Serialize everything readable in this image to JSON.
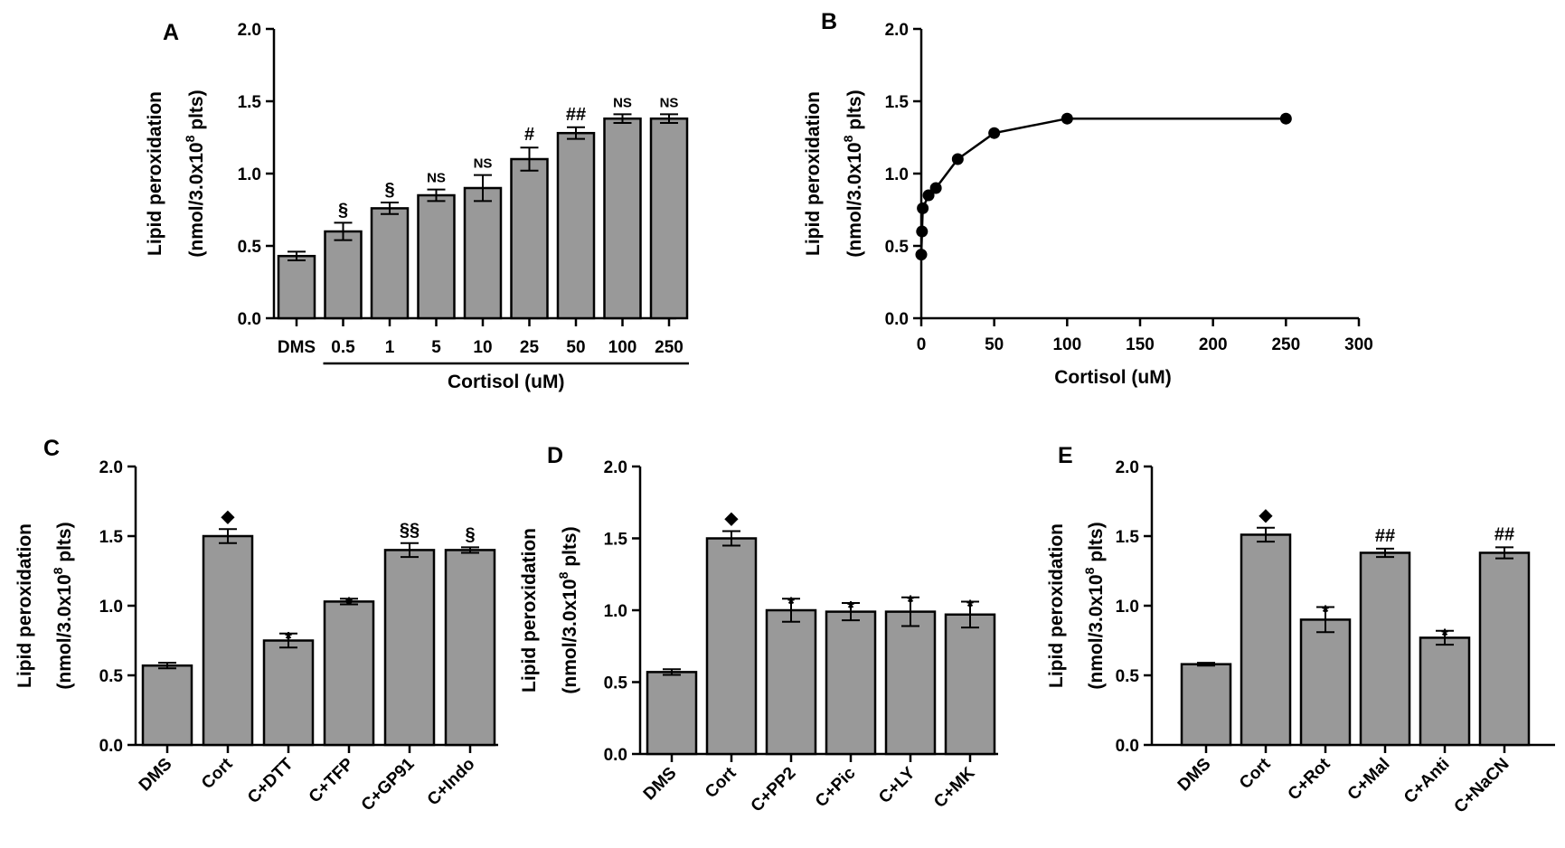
{
  "chart_data": [
    {
      "panel": "A",
      "type": "bar",
      "ylabel_line1": "Lipid peroxidation",
      "ylabel_line2_prefix": "(nmol/3.0x10",
      "ylabel_line2_sup": "8",
      "ylabel_line2_suffix": " plts)",
      "ylim": [
        0,
        2.0
      ],
      "yticks": [
        "0.0",
        "0.5",
        "1.0",
        "1.5",
        "2.0"
      ],
      "ytick_values": [
        0,
        0.5,
        1.0,
        1.5,
        2.0
      ],
      "categories": [
        "DMS",
        "0.5",
        "1",
        "5",
        "10",
        "25",
        "50",
        "100",
        "250"
      ],
      "values": [
        0.43,
        0.6,
        0.76,
        0.85,
        0.9,
        1.1,
        1.28,
        1.38,
        1.38
      ],
      "errors": [
        0.03,
        0.06,
        0.04,
        0.04,
        0.09,
        0.08,
        0.04,
        0.03,
        0.03
      ],
      "annotations": [
        "",
        "§",
        "§",
        "NS",
        "NS",
        "#",
        "##",
        "NS",
        "NS"
      ],
      "group_label": "Cortisol (uM)"
    },
    {
      "panel": "B",
      "type": "line",
      "ylabel_line1": "Lipid peroxidation",
      "ylabel_line2_prefix": "(nmol/3.0x10",
      "ylabel_line2_sup": "8",
      "ylabel_line2_suffix": " plts)",
      "xlabel": "Cortisol (uM)",
      "xlim": [
        0,
        300
      ],
      "ylim": [
        0,
        2.0
      ],
      "xticks": [
        "0",
        "50",
        "100",
        "150",
        "200",
        "250",
        "300"
      ],
      "xtick_values": [
        0,
        50,
        100,
        150,
        200,
        250,
        300
      ],
      "yticks": [
        "0.0",
        "0.5",
        "1.0",
        "1.5",
        "2.0"
      ],
      "ytick_values": [
        0,
        0.5,
        1.0,
        1.5,
        2.0
      ],
      "x": [
        0,
        0.5,
        1,
        5,
        10,
        25,
        50,
        100,
        250
      ],
      "y": [
        0.44,
        0.6,
        0.76,
        0.85,
        0.9,
        1.1,
        1.28,
        1.38,
        1.38
      ]
    },
    {
      "panel": "C",
      "type": "bar",
      "ylabel_line1": "Lipid peroxidation",
      "ylabel_line2_prefix": "(nmol/3.0x10",
      "ylabel_line2_sup": "8",
      "ylabel_line2_suffix": " plts)",
      "ylim": [
        0,
        2.0
      ],
      "yticks": [
        "0.0",
        "0.5",
        "1.0",
        "1.5",
        "2.0"
      ],
      "ytick_values": [
        0,
        0.5,
        1.0,
        1.5,
        2.0
      ],
      "categories": [
        "DMS",
        "Cort",
        "C+DTT",
        "C+TFP",
        "C+GP91",
        "C+Indo"
      ],
      "values": [
        0.57,
        1.5,
        0.75,
        1.03,
        1.4,
        1.4
      ],
      "errors": [
        0.02,
        0.05,
        0.05,
        0.02,
        0.05,
        0.02
      ],
      "annotations": [
        "",
        "◆",
        "*",
        "*",
        "§§",
        "§"
      ]
    },
    {
      "panel": "D",
      "type": "bar",
      "ylabel_line1": "Lipid peroxidation",
      "ylabel_line2_prefix": "(nmol/3.0x10",
      "ylabel_line2_sup": "8",
      "ylabel_line2_suffix": " plts)",
      "ylim": [
        0,
        2.0
      ],
      "yticks": [
        "0.0",
        "0.5",
        "1.0",
        "1.5",
        "2.0"
      ],
      "ytick_values": [
        0,
        0.5,
        1.0,
        1.5,
        2.0
      ],
      "categories": [
        "DMS",
        "Cort",
        "C+PP2",
        "C+Pic",
        "C+LY",
        "C+MK"
      ],
      "values": [
        0.57,
        1.5,
        1.0,
        0.99,
        0.99,
        0.97
      ],
      "errors": [
        0.02,
        0.05,
        0.08,
        0.06,
        0.1,
        0.09
      ],
      "annotations": [
        "",
        "◆",
        "*",
        "*",
        "*",
        "*"
      ]
    },
    {
      "panel": "E",
      "type": "bar",
      "ylabel_line1": "Lipid peroxidation",
      "ylabel_line2_prefix": "(nmol/3.0x10",
      "ylabel_line2_sup": "8",
      "ylabel_line2_suffix": " plts)",
      "ylim": [
        0,
        2.0
      ],
      "yticks": [
        "0.0",
        "0.5",
        "1.0",
        "1.5",
        "2.0"
      ],
      "ytick_values": [
        0,
        0.5,
        1.0,
        1.5,
        2.0
      ],
      "categories": [
        "DMS",
        "Cort",
        "C+Rot",
        "C+Mal",
        "C+Anti",
        "C+NaCN"
      ],
      "values": [
        0.58,
        1.51,
        0.9,
        1.38,
        0.77,
        1.38
      ],
      "errors": [
        0.01,
        0.05,
        0.09,
        0.03,
        0.05,
        0.04
      ],
      "annotations": [
        "",
        "◆",
        "*",
        "##",
        "*",
        "##"
      ]
    }
  ],
  "style": {
    "bar_fill": "#999999",
    "stroke": "#000000",
    "background": "#ffffff"
  }
}
